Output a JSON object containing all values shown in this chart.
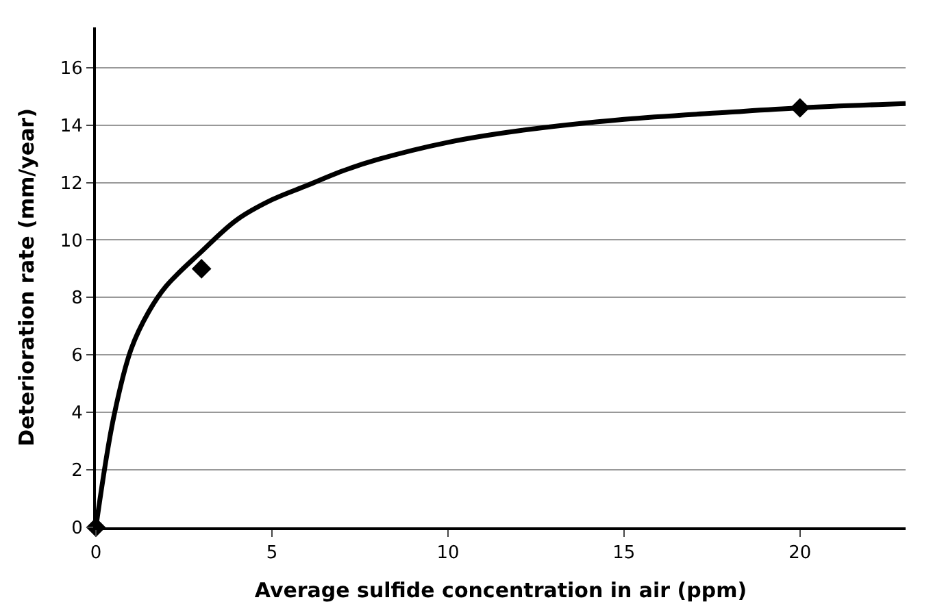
{
  "chart_data": {
    "type": "line",
    "xlabel": "Average sulfide concentration in air (ppm)",
    "ylabel": "Deterioration rate (mm/year)",
    "xlim": [
      0,
      23
    ],
    "xticks": [
      0,
      5,
      10,
      15,
      20
    ],
    "ylim": [
      0,
      17.4
    ],
    "yticks": [
      0,
      2,
      4,
      6,
      8,
      10,
      12,
      14,
      16
    ],
    "grid": "y",
    "legend": false,
    "series": [
      {
        "color": "#000000",
        "marker": "none",
        "line_style": "solid",
        "x": [
          0,
          0.5,
          1,
          1.5,
          2,
          3,
          4,
          5,
          6,
          7,
          8,
          10,
          12,
          15,
          18,
          20,
          23
        ],
        "values": [
          0,
          3.8,
          6.2,
          7.5,
          8.4,
          9.6,
          10.7,
          11.4,
          11.9,
          12.4,
          12.8,
          13.4,
          13.8,
          14.2,
          14.45,
          14.6,
          14.75
        ]
      },
      {
        "type": "scatter",
        "color": "#000000",
        "marker": "diamond",
        "x": [
          0,
          3,
          20
        ],
        "values": [
          0,
          9,
          14.6
        ]
      }
    ]
  }
}
